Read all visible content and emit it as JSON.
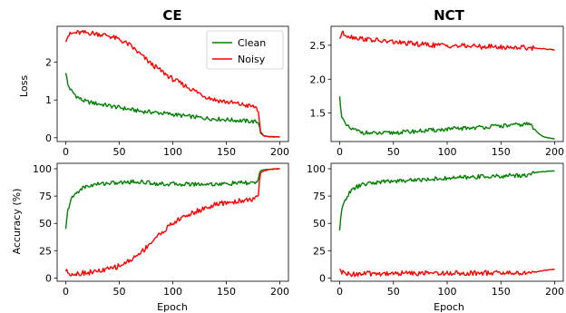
{
  "colors": {
    "clean": "#008000",
    "noisy": "#ff0000"
  },
  "chart_data": [
    {
      "id": "ce-loss",
      "type": "line",
      "title": "CE",
      "xlabel": "",
      "ylabel": "Loss",
      "xlim": [
        -8,
        208
      ],
      "ylim": [
        -0.1,
        2.95
      ],
      "xticks": [
        0,
        50,
        100,
        150,
        200
      ],
      "xticklabels": [
        "0",
        "50",
        "100",
        "150",
        "200"
      ],
      "yticks": [
        0,
        1,
        2
      ],
      "yticklabels": [
        "0",
        "1",
        "2"
      ],
      "legend": {
        "position": "top-right",
        "entries": [
          "Clean",
          "Noisy"
        ]
      },
      "series": [
        {
          "name": "Clean",
          "color": "#008000",
          "x": [
            0,
            2,
            5,
            10,
            15,
            20,
            30,
            40,
            50,
            60,
            70,
            80,
            90,
            100,
            110,
            120,
            130,
            140,
            150,
            160,
            170,
            175,
            178,
            180,
            181,
            182,
            185,
            190,
            200
          ],
          "y": [
            1.75,
            1.4,
            1.25,
            1.1,
            1.0,
            0.95,
            0.9,
            0.85,
            0.8,
            0.75,
            0.7,
            0.68,
            0.65,
            0.62,
            0.58,
            0.55,
            0.52,
            0.5,
            0.48,
            0.46,
            0.44,
            0.43,
            0.42,
            0.4,
            0.3,
            0.12,
            0.05,
            0.03,
            0.02
          ]
        },
        {
          "name": "Noisy",
          "color": "#ff0000",
          "x": [
            0,
            2,
            5,
            10,
            20,
            30,
            40,
            50,
            60,
            70,
            80,
            90,
            100,
            110,
            120,
            130,
            140,
            150,
            160,
            170,
            175,
            178,
            180,
            181,
            182,
            185,
            190,
            200
          ],
          "y": [
            2.6,
            2.7,
            2.75,
            2.78,
            2.78,
            2.75,
            2.7,
            2.6,
            2.45,
            2.2,
            1.95,
            1.75,
            1.55,
            1.4,
            1.25,
            1.1,
            1.0,
            0.95,
            0.9,
            0.85,
            0.82,
            0.8,
            0.7,
            0.4,
            0.15,
            0.05,
            0.03,
            0.02
          ]
        }
      ]
    },
    {
      "id": "nct-loss",
      "type": "line",
      "title": "NCT",
      "xlabel": "",
      "ylabel": "",
      "xlim": [
        -8,
        208
      ],
      "ylim": [
        1.08,
        2.78
      ],
      "xticks": [
        0,
        50,
        100,
        150,
        200
      ],
      "xticklabels": [
        "0",
        "50",
        "100",
        "150",
        "200"
      ],
      "yticks": [
        1.5,
        2.0,
        2.5
      ],
      "yticklabels": [
        "1.5",
        "2.0",
        "2.5"
      ],
      "series": [
        {
          "name": "Clean",
          "color": "#008000",
          "x": [
            0,
            2,
            5,
            10,
            20,
            30,
            40,
            50,
            60,
            70,
            80,
            90,
            100,
            110,
            120,
            130,
            140,
            150,
            160,
            170,
            175,
            178,
            180,
            185,
            190,
            195,
            200
          ],
          "y": [
            1.73,
            1.45,
            1.33,
            1.27,
            1.22,
            1.2,
            1.2,
            1.21,
            1.22,
            1.23,
            1.24,
            1.25,
            1.26,
            1.27,
            1.28,
            1.29,
            1.3,
            1.31,
            1.32,
            1.33,
            1.34,
            1.33,
            1.28,
            1.2,
            1.15,
            1.13,
            1.12
          ]
        },
        {
          "name": "Noisy",
          "color": "#ff0000",
          "x": [
            0,
            2,
            5,
            10,
            20,
            30,
            40,
            50,
            60,
            70,
            80,
            90,
            100,
            110,
            120,
            130,
            140,
            150,
            160,
            170,
            180,
            190,
            200
          ],
          "y": [
            2.6,
            2.68,
            2.66,
            2.63,
            2.6,
            2.58,
            2.56,
            2.55,
            2.53,
            2.52,
            2.51,
            2.5,
            2.5,
            2.49,
            2.49,
            2.48,
            2.48,
            2.47,
            2.47,
            2.47,
            2.46,
            2.45,
            2.43
          ]
        }
      ]
    },
    {
      "id": "ce-acc",
      "type": "line",
      "title": "",
      "xlabel": "Epoch",
      "ylabel": "Accuracy (%)",
      "xlim": [
        -8,
        208
      ],
      "ylim": [
        -3,
        105
      ],
      "xticks": [
        0,
        50,
        100,
        150,
        200
      ],
      "xticklabels": [
        "0",
        "50",
        "100",
        "150",
        "200"
      ],
      "yticks": [
        0,
        25,
        50,
        75,
        100
      ],
      "yticklabels": [
        "0",
        "25",
        "50",
        "75",
        "100"
      ],
      "series": [
        {
          "name": "Clean",
          "color": "#008000",
          "x": [
            0,
            2,
            5,
            10,
            15,
            20,
            30,
            40,
            50,
            60,
            70,
            80,
            90,
            100,
            110,
            120,
            130,
            140,
            150,
            160,
            170,
            175,
            178,
            180,
            181,
            182,
            185,
            190,
            200
          ],
          "y": [
            44,
            62,
            72,
            78,
            82,
            84,
            86,
            87,
            87,
            88,
            88,
            87,
            86,
            86,
            86,
            86,
            86,
            86,
            86,
            87,
            87,
            87,
            88,
            90,
            96,
            98,
            99,
            99.5,
            100
          ]
        },
        {
          "name": "Noisy",
          "color": "#ff0000",
          "x": [
            0,
            2,
            5,
            10,
            20,
            30,
            40,
            50,
            60,
            70,
            80,
            90,
            100,
            110,
            120,
            130,
            140,
            150,
            160,
            170,
            175,
            178,
            180,
            181,
            182,
            185,
            190,
            200
          ],
          "y": [
            7,
            5,
            4,
            4,
            5,
            6,
            8,
            11,
            16,
            23,
            33,
            42,
            50,
            56,
            60,
            64,
            67,
            69,
            70,
            72,
            72,
            73,
            74,
            90,
            96,
            98,
            99.5,
            100
          ]
        }
      ]
    },
    {
      "id": "nct-acc",
      "type": "line",
      "title": "",
      "xlabel": "Epoch",
      "ylabel": "",
      "xlim": [
        -8,
        208
      ],
      "ylim": [
        -3,
        105
      ],
      "xticks": [
        0,
        50,
        100,
        150,
        200
      ],
      "xticklabels": [
        "0",
        "50",
        "100",
        "150",
        "200"
      ],
      "yticks": [
        0,
        25,
        50,
        75,
        100
      ],
      "yticklabels": [
        "0",
        "25",
        "50",
        "75",
        "100"
      ],
      "series": [
        {
          "name": "Clean",
          "color": "#008000",
          "x": [
            0,
            2,
            5,
            10,
            15,
            20,
            30,
            40,
            50,
            60,
            70,
            80,
            90,
            100,
            110,
            120,
            130,
            140,
            150,
            160,
            170,
            175,
            178,
            180,
            185,
            190,
            200
          ],
          "y": [
            44,
            62,
            72,
            79,
            83,
            85,
            87,
            88,
            89,
            89,
            90,
            90,
            91,
            91,
            92,
            92,
            93,
            93,
            93,
            94,
            94,
            94,
            95,
            96,
            97,
            97.5,
            98
          ]
        },
        {
          "name": "Noisy",
          "color": "#ff0000",
          "x": [
            0,
            2,
            5,
            10,
            20,
            30,
            50,
            75,
            100,
            125,
            150,
            170,
            175,
            178,
            180,
            185,
            190,
            200
          ],
          "y": [
            7,
            5,
            4,
            3.5,
            3.8,
            4,
            4.2,
            4.4,
            4.6,
            4.6,
            4.6,
            4.5,
            4.5,
            4.5,
            5,
            6,
            7,
            8
          ]
        }
      ]
    }
  ]
}
